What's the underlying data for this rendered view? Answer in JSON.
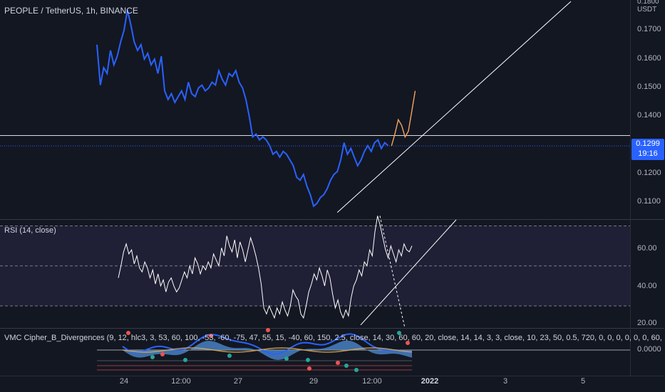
{
  "main": {
    "title": "PEOPLE / TetherUS, 1h, BINANCE",
    "scale_unit": "USDT",
    "scale_labels": [
      "0.1800",
      "0.1700",
      "0.1600",
      "0.1500",
      "0.1400",
      "0.1200",
      "0.1100"
    ],
    "last_price": "0.1299",
    "countdown": "19:16"
  },
  "rsi": {
    "title": "RSI (14, close)",
    "scale_labels": [
      "60.00",
      "40.00",
      "20.00"
    ]
  },
  "vmc": {
    "title": "VMC Cipher_B_Divergences (9, 12, hlc3, 3, 53, 60, 100, -53, -60, -75, 47, 55, 15, -40, 60, 150, 2.5, close, 14, 30, 60, 60, 20, close, 14, 14, 3, 3, close, 10, 23, 50, 0.5, 720, 0, 0, 0, 0, 0, 0, 60,",
    "scale_label": "0.0000"
  },
  "time_axis": [
    "24",
    "12:00",
    "27",
    "29",
    "12:00",
    "2022",
    "3",
    "5"
  ],
  "colors": {
    "background": "#131722",
    "price_line": "#2962ff",
    "rsi_line": "#ffffff",
    "rsi_band": "#7e57c2",
    "projection": "#f4a460",
    "trendline": "#ffffff",
    "last_price_tag": "#2962ff"
  },
  "chart_data": [
    {
      "type": "line",
      "title": "PEOPLE / TetherUS, 1h, BINANCE",
      "series": [
        {
          "name": "PEOPLE / TetherUS",
          "x_index": [
            0,
            1,
            2,
            3,
            4,
            5,
            6,
            7,
            8,
            9,
            10,
            11,
            12,
            13,
            14,
            15,
            16,
            17,
            18,
            19,
            20,
            21,
            22,
            23,
            24,
            25,
            26,
            27,
            28,
            29,
            30,
            31,
            32,
            33,
            34,
            35,
            36,
            37,
            38,
            39,
            40,
            41,
            42,
            43,
            44,
            45,
            46,
            47,
            48,
            49,
            50,
            51,
            52,
            53,
            54,
            55,
            56,
            57,
            58,
            59,
            60,
            61,
            62,
            63,
            64,
            65,
            66,
            67,
            68,
            69,
            70,
            71,
            72,
            73,
            74,
            75,
            76,
            77,
            78,
            79,
            80,
            81,
            82,
            83,
            84,
            85,
            86,
            87,
            88,
            89,
            90,
            91,
            92,
            93,
            94
          ],
          "values": [
            0.165,
            0.151,
            0.157,
            0.155,
            0.163,
            0.158,
            0.161,
            0.166,
            0.17,
            0.177,
            0.172,
            0.166,
            0.163,
            0.165,
            0.16,
            0.162,
            0.158,
            0.16,
            0.155,
            0.161,
            0.149,
            0.146,
            0.148,
            0.145,
            0.147,
            0.149,
            0.146,
            0.152,
            0.148,
            0.147,
            0.15,
            0.151,
            0.149,
            0.15,
            0.152,
            0.151,
            0.156,
            0.153,
            0.151,
            0.155,
            0.154,
            0.156,
            0.152,
            0.15,
            0.146,
            0.14,
            0.133,
            0.134,
            0.132,
            0.133,
            0.132,
            0.13,
            0.127,
            0.128,
            0.126,
            0.128,
            0.127,
            0.125,
            0.123,
            0.119,
            0.118,
            0.12,
            0.116,
            0.113,
            0.109,
            0.11,
            0.112,
            0.113,
            0.115,
            0.118,
            0.12,
            0.121,
            0.125,
            0.131,
            0.127,
            0.129,
            0.126,
            0.123,
            0.125,
            0.128,
            0.13,
            0.128,
            0.131,
            0.132,
            0.129,
            0.131,
            0.13,
            0.1299,
            0.1299,
            0.1299,
            0.1299,
            0.1299,
            0.1299,
            0.1299,
            0.1299
          ],
          "visible_count": 87
        },
        {
          "name": "",
          "x_index": [
            87,
            88,
            89,
            90,
            91,
            92,
            93,
            94
          ],
          "values": [
            0.1299,
            0.134,
            0.139,
            0.137,
            0.133,
            0.135,
            0.142,
            0.149
          ]
        }
      ],
      "ylim": [
        0.1045,
        0.1805
      ],
      "horizontal_line": 0.1335,
      "last_price": 0.1299,
      "trendline": {
        "from": {
          "x_index": 71,
          "y": 0.1068
        },
        "to": {
          "x_index": 140,
          "y": 0.18
        }
      }
    },
    {
      "type": "line",
      "title": "RSI (14, close)",
      "series": [
        {
          "name": "RSI",
          "values": [
            44,
            50,
            57,
            61,
            56,
            58,
            51,
            55,
            49,
            47,
            52,
            49,
            44,
            48,
            41,
            46,
            40,
            43,
            37,
            42,
            44,
            40,
            37,
            39,
            43,
            47,
            44,
            50,
            46,
            54,
            51,
            46,
            50,
            48,
            52,
            49,
            56,
            53,
            50,
            59,
            55,
            65,
            60,
            57,
            63,
            54,
            62,
            58,
            52,
            58,
            64,
            60,
            55,
            49,
            41,
            29,
            26,
            30,
            27,
            24,
            29,
            26,
            32,
            28,
            25,
            30,
            38,
            35,
            33,
            26,
            24,
            30,
            37,
            41,
            46,
            43,
            49,
            45,
            40,
            48,
            44,
            36,
            29,
            33,
            27,
            24,
            28,
            25,
            34,
            40,
            43,
            48,
            45,
            52,
            50,
            58,
            55,
            67,
            75,
            70,
            64,
            58,
            54,
            60,
            56,
            52,
            58,
            55,
            61,
            58,
            57,
            60
          ]
        }
      ],
      "ylim": [
        19,
        73
      ],
      "levels": [
        70,
        50,
        30
      ],
      "scale_ticks": [
        60,
        40,
        20
      ]
    }
  ]
}
